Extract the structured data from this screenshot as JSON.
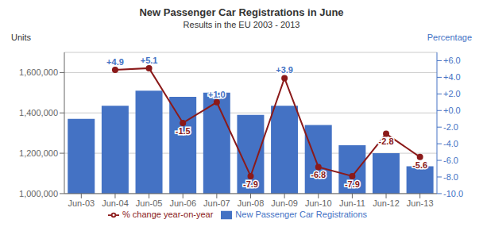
{
  "chart_data": {
    "type": "bar",
    "title": "New Passenger Car Registrations in June",
    "subtitle": "Results in the EU 2003 - 2013",
    "y_label": "Units",
    "y2_label": "Percentage",
    "categories": [
      "Jun-03",
      "Jun-04",
      "Jun-05",
      "Jun-06",
      "Jun-07",
      "Jun-08",
      "Jun-09",
      "Jun-10",
      "Jun-11",
      "Jun-12",
      "Jun-13"
    ],
    "series": [
      {
        "name": "New Passenger Car Registrations",
        "type": "bar",
        "color": "#4472C4",
        "values": [
          1370000,
          1435000,
          1510000,
          1480000,
          1500000,
          1390000,
          1435000,
          1340000,
          1240000,
          1200000,
          1135000
        ]
      },
      {
        "name": "% change year-on-year",
        "type": "line",
        "axis": "y2",
        "color": "#8B1A1A",
        "marker": "circle",
        "values": [
          null,
          4.9,
          5.1,
          -1.5,
          1.0,
          -7.9,
          3.9,
          -6.8,
          -7.9,
          -2.8,
          -5.6
        ]
      }
    ],
    "ylim": [
      1000000,
      1700000
    ],
    "yticks": [
      {
        "value": 1000000,
        "label": "1,000,000"
      },
      {
        "value": 1200000,
        "label": "1,200,000"
      },
      {
        "value": 1400000,
        "label": "1,400,000"
      },
      {
        "value": 1600000,
        "label": "1,600,000"
      }
    ],
    "y2lim": [
      -10.0,
      7.0
    ],
    "y2ticks": [
      {
        "value": -10.0,
        "label": "-10.0"
      },
      {
        "value": -8.0,
        "label": "-8.0"
      },
      {
        "value": -6.0,
        "label": "-6.0"
      },
      {
        "value": -4.0,
        "label": "-4.0"
      },
      {
        "value": -2.0,
        "label": "-2.0"
      },
      {
        "value": 0.0,
        "label": "+0.0"
      },
      {
        "value": 2.0,
        "label": "+2.0"
      },
      {
        "value": 4.0,
        "label": "+4.0"
      },
      {
        "value": 6.0,
        "label": "+6.0"
      }
    ],
    "y2_color": "#4472C4",
    "grid": true,
    "legend": "bottom",
    "annotations": [
      {
        "x": "Jun-04",
        "y": 4.9,
        "text": "+4.9",
        "color": "#4472C4"
      },
      {
        "x": "Jun-05",
        "y": 5.1,
        "text": "+5.1",
        "color": "#4472C4"
      },
      {
        "x": "Jun-06",
        "y": -1.5,
        "text": "-1.5",
        "color": "#8B1A1A"
      },
      {
        "x": "Jun-07",
        "y": 1.0,
        "text": "+1.0",
        "color": "#4472C4"
      },
      {
        "x": "Jun-08",
        "y": -7.9,
        "text": "-7.9",
        "color": "#8B1A1A"
      },
      {
        "x": "Jun-09",
        "y": 3.9,
        "text": "+3.9",
        "color": "#4472C4"
      },
      {
        "x": "Jun-10",
        "y": -6.8,
        "text": "-6.8",
        "color": "#8B1A1A"
      },
      {
        "x": "Jun-11",
        "y": -7.9,
        "text": "-7.9",
        "color": "#8B1A1A"
      },
      {
        "x": "Jun-12",
        "y": -2.8,
        "text": "-2.8",
        "color": "#8B1A1A"
      },
      {
        "x": "Jun-13",
        "y": -5.6,
        "text": "-5.6",
        "color": "#8B1A1A"
      }
    ]
  }
}
